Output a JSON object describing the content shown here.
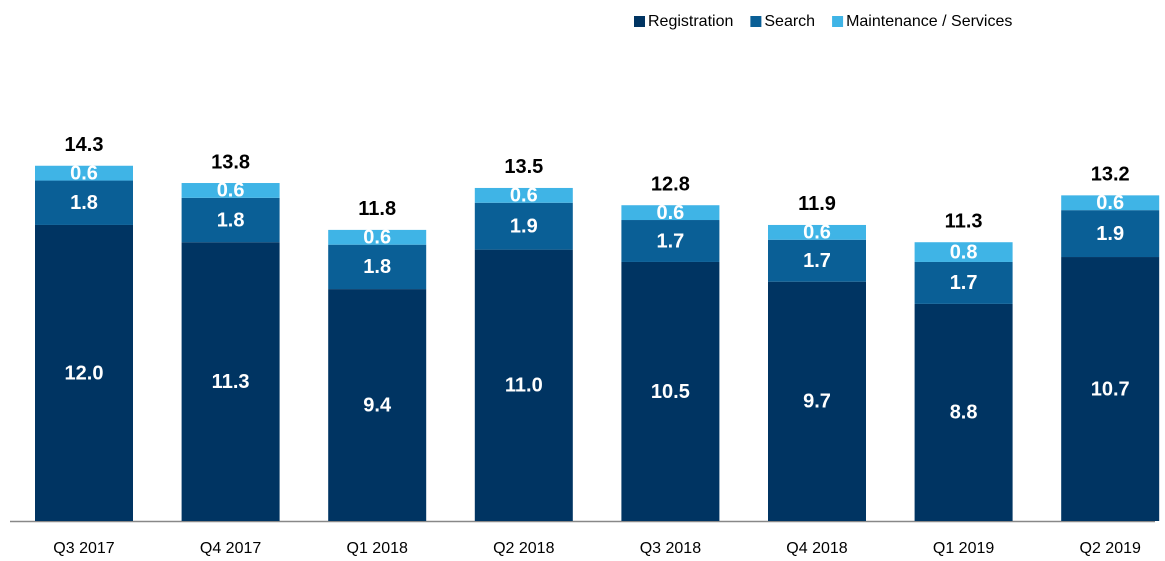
{
  "chart_data": {
    "type": "stacked_bar",
    "categories": [
      "Q3 2017",
      "Q4 2017",
      "Q1 2018",
      "Q2 2018",
      "Q3 2018",
      "Q4 2018",
      "Q1 2019",
      "Q2 2019"
    ],
    "series": [
      {
        "name": "Registration",
        "color": "#003462",
        "values": [
          12.0,
          11.3,
          9.4,
          11.0,
          10.5,
          9.7,
          8.8,
          10.7
        ],
        "value_labels": [
          "12.0",
          "11.3",
          "9.4",
          "11.0",
          "10.5",
          "9.7",
          "8.8",
          "10.7"
        ]
      },
      {
        "name": "Search",
        "color": "#0a5f96",
        "values": [
          1.8,
          1.8,
          1.8,
          1.9,
          1.7,
          1.7,
          1.7,
          1.9
        ]
      },
      {
        "name": "Maintenance / Services",
        "color": "#3fb4e6",
        "values": [
          0.6,
          0.6,
          0.6,
          0.6,
          0.6,
          0.6,
          0.8,
          0.6
        ]
      }
    ],
    "totals": [
      14.3,
      13.8,
      11.8,
      13.5,
      12.8,
      11.9,
      11.3,
      13.2
    ]
  }
}
